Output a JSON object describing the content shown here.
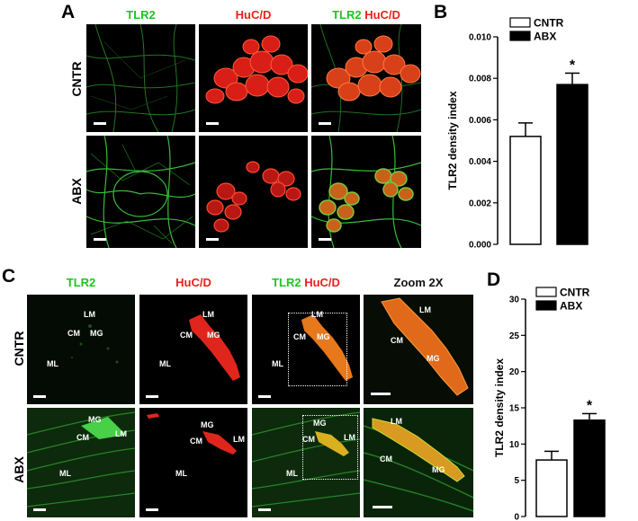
{
  "panel_A": {
    "letter": "A",
    "columns": [
      "TLR2",
      "HuC/D",
      "TLR2",
      "HuC/D"
    ],
    "rows": [
      "CNTR",
      "ABX"
    ]
  },
  "panel_C": {
    "letter": "C",
    "columns": [
      "TLR2",
      "HuC/D",
      "TLR2",
      "HuC/D",
      "Zoom 2X"
    ],
    "rows": [
      "CNTR",
      "ABX"
    ],
    "tissue_labels": {
      "LM": "LM",
      "CM": "CM",
      "MG": "MG",
      "ML": "ML"
    }
  },
  "colors": {
    "green_channel": "#22c222",
    "red_channel": "#e3231c",
    "bar_cntr": "#ffffff",
    "bar_abx": "#000000"
  },
  "chart_data": [
    {
      "panel": "B",
      "type": "bar",
      "categories": [
        "CNTR",
        "ABX"
      ],
      "values": [
        0.0052,
        0.0077
      ],
      "errors": [
        0.00065,
        0.00055
      ],
      "significance": [
        "",
        "*"
      ],
      "ylabel": "TLR2 density index",
      "ylim": [
        0,
        0.01
      ],
      "yticks": [
        "0.000",
        "0.002",
        "0.004",
        "0.006",
        "0.008",
        "0.010"
      ],
      "legend": [
        "CNTR",
        "ABX"
      ],
      "legend_position": "top-left"
    },
    {
      "panel": "D",
      "type": "bar",
      "categories": [
        "CNTR",
        "ABX"
      ],
      "values": [
        7.8,
        13.3
      ],
      "errors": [
        1.2,
        0.9
      ],
      "significance": [
        "",
        "*"
      ],
      "ylabel": "TLR2 density index",
      "ylim": [
        0,
        30
      ],
      "yticks": [
        "0",
        "5",
        "10",
        "15",
        "20",
        "25",
        "30"
      ],
      "legend": [
        "CNTR",
        "ABX"
      ],
      "legend_position": "top-left"
    }
  ]
}
